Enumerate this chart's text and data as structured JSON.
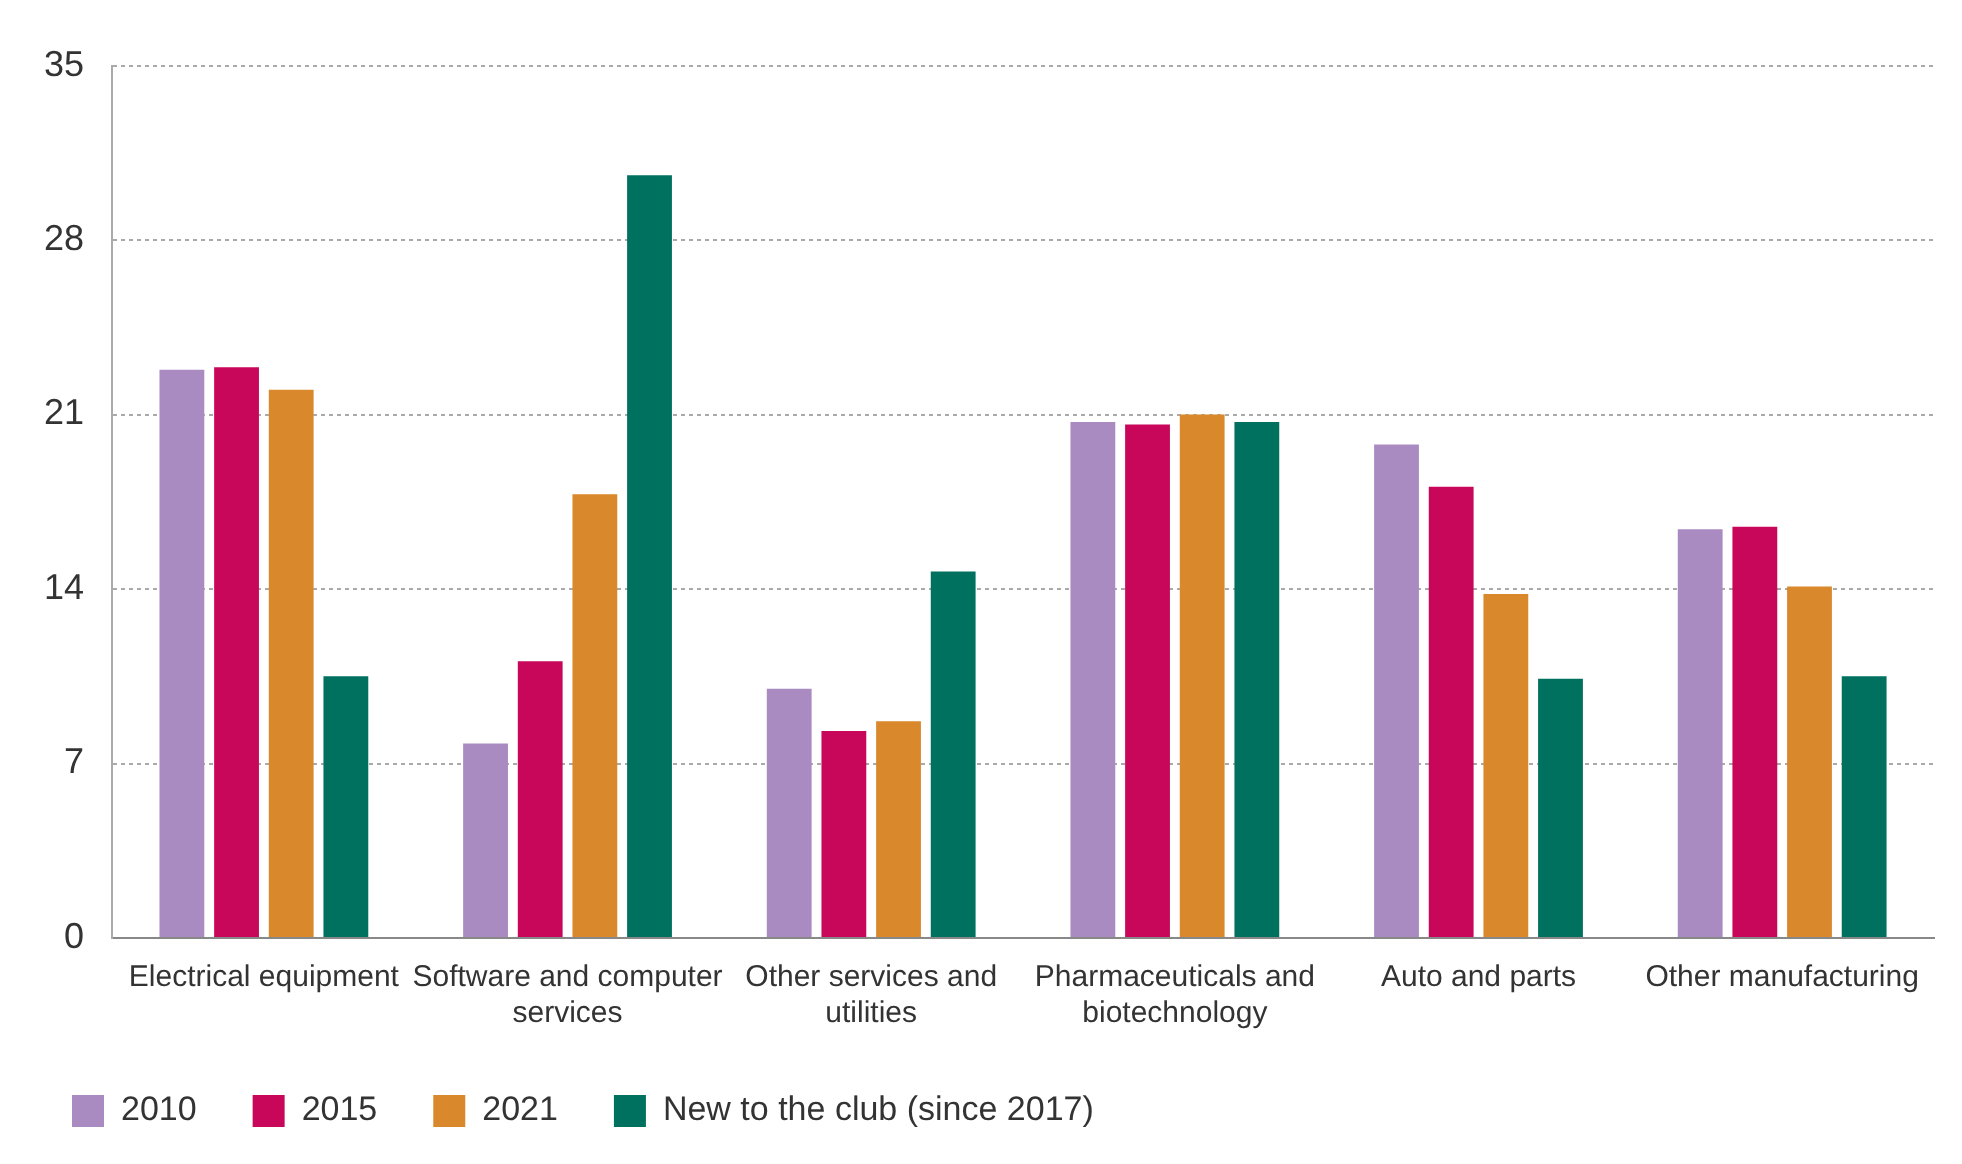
{
  "chart_data": {
    "type": "bar",
    "categories": [
      "Electrical equipment",
      "Software and computer services",
      "Other services and utilities",
      "Pharmaceuticals and biotechnology",
      "Auto and parts",
      "Other manufacturing"
    ],
    "series": [
      {
        "name": "2010",
        "color": "#a98bc2",
        "values": [
          22.8,
          7.8,
          10.0,
          20.7,
          19.8,
          16.4
        ]
      },
      {
        "name": "2015",
        "color": "#c8075a",
        "values": [
          22.9,
          11.1,
          8.3,
          20.6,
          18.1,
          16.5
        ]
      },
      {
        "name": "2021",
        "color": "#d9892b",
        "values": [
          22.0,
          17.8,
          8.7,
          21.0,
          13.8,
          14.1
        ]
      },
      {
        "name": "New to the club (since 2017)",
        "color": "#00705f",
        "values": [
          10.5,
          30.6,
          14.7,
          20.7,
          10.4,
          10.5
        ]
      }
    ],
    "ylim": [
      0,
      35
    ],
    "yticks": [
      0,
      7,
      14,
      21,
      28,
      35
    ],
    "grid": "y",
    "legend": "bottom left"
  }
}
